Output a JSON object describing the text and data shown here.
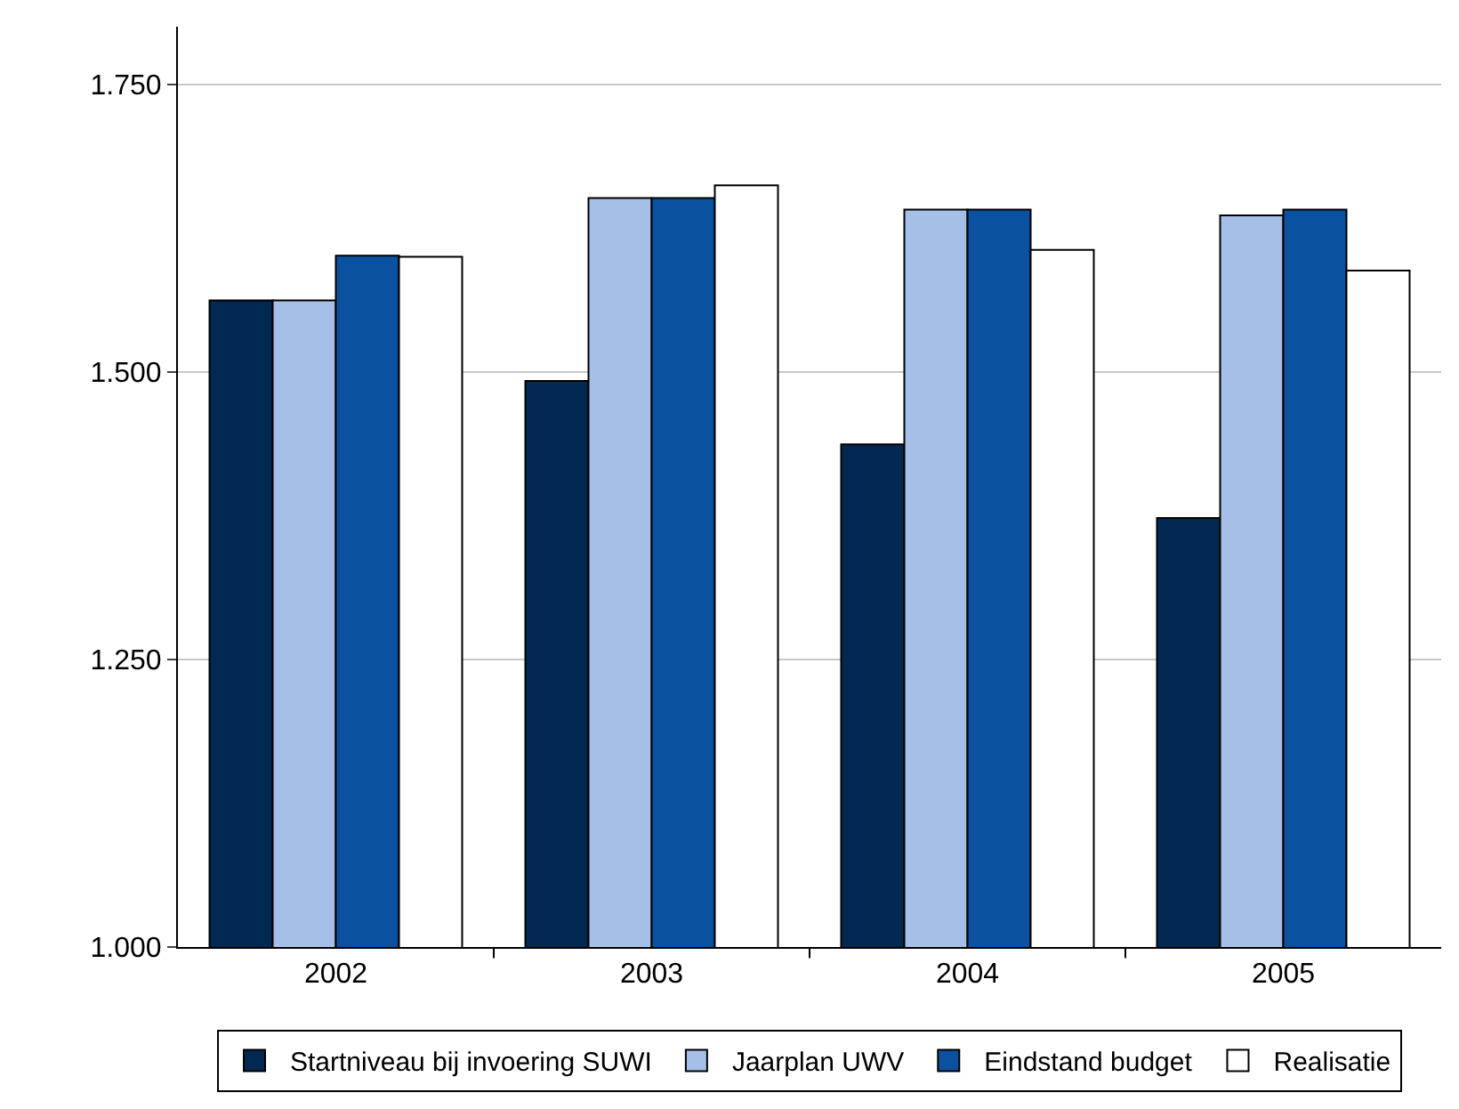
{
  "chart_data": {
    "type": "bar",
    "categories": [
      "2002",
      "2003",
      "2004",
      "2005"
    ],
    "series": [
      {
        "name": "Startniveau bij invoering SUWI",
        "color": "#002850",
        "values": [
          1.562,
          1.492,
          1.437,
          1.373
        ]
      },
      {
        "name": "Jaarplan UWV",
        "color": "#a6bfe6",
        "values": [
          1.562,
          1.651,
          1.641,
          1.636
        ]
      },
      {
        "name": "Eindstand budget",
        "color": "#0a52a0",
        "values": [
          1.601,
          1.651,
          1.641,
          1.641
        ]
      },
      {
        "name": "Realisatie",
        "color": "#ffffff",
        "values": [
          1.6,
          1.662,
          1.606,
          1.588
        ]
      }
    ],
    "ylim": [
      1.0,
      1.8
    ],
    "yticks": [
      {
        "value": 1.0,
        "label": "1.000"
      },
      {
        "value": 1.25,
        "label": "1.250"
      },
      {
        "value": 1.5,
        "label": "1.500"
      },
      {
        "value": 1.75,
        "label": "1.750"
      }
    ],
    "grid": "y",
    "legend": "bottom"
  }
}
